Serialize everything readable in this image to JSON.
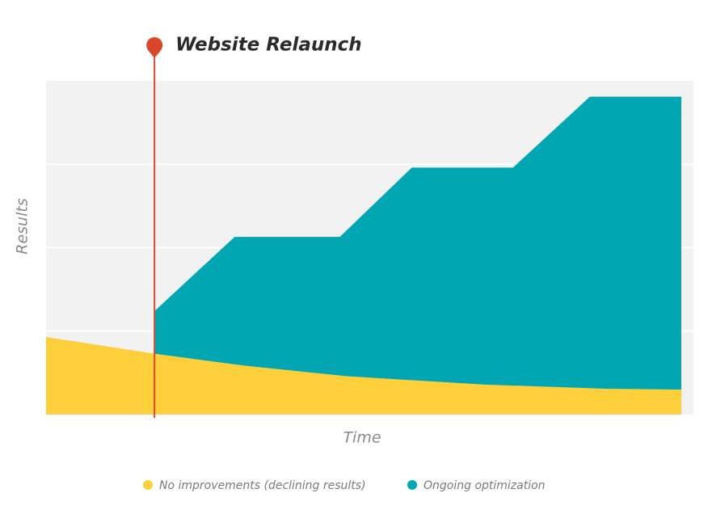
{
  "chart_data": {
    "type": "area",
    "x_label": "Time",
    "y_label": "Results",
    "xlim": [
      0,
      8
    ],
    "ylim": [
      0,
      4
    ],
    "ygrid": [
      1,
      2,
      3
    ],
    "grid": true,
    "annotation": {
      "text": "Website Relaunch",
      "x": 1.34,
      "color": "#d9472b"
    },
    "series": [
      {
        "name": "No improvements (declining results)",
        "color": "#fdd03b",
        "x": [
          0,
          1.34,
          2.43,
          3.72,
          5.42,
          6.92,
          7.85
        ],
        "values": [
          0.93,
          0.73,
          0.59,
          0.46,
          0.36,
          0.31,
          0.3
        ]
      },
      {
        "name": "Ongoing optimization",
        "color": "#00a6b2",
        "x": [
          1.34,
          2.33,
          3.63,
          4.52,
          5.77,
          6.72,
          7.85
        ],
        "values": [
          1.24,
          2.13,
          2.13,
          2.96,
          2.96,
          3.81,
          3.81
        ]
      }
    ]
  }
}
